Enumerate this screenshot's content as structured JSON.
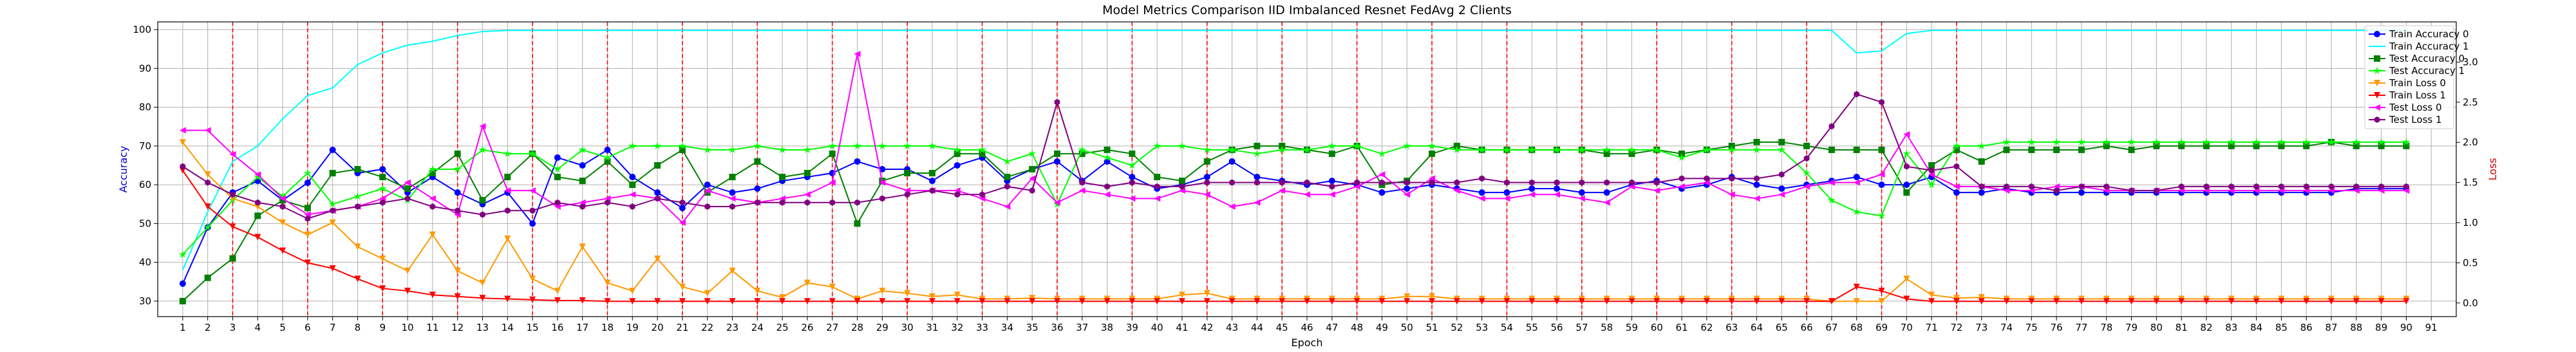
{
  "chart_data": {
    "type": "line",
    "title": "Model Metrics Comparison IID Imbalanced Resnet FedAvg 2 Clients",
    "xlabel": "Epoch",
    "ylabel_left": "Accuracy",
    "ylabel_right": "Loss",
    "x_ticks": [
      1,
      2,
      3,
      4,
      5,
      6,
      7,
      8,
      9,
      10,
      11,
      12,
      13,
      14,
      15,
      16,
      17,
      18,
      19,
      20,
      21,
      22,
      23,
      24,
      25,
      26,
      27,
      28,
      29,
      30,
      31,
      32,
      33,
      34,
      35,
      36,
      37,
      38,
      39,
      40,
      41,
      42,
      43,
      44,
      45,
      46,
      47,
      48,
      49,
      50,
      51,
      52,
      53,
      54,
      55,
      56,
      57,
      58,
      59,
      60,
      61,
      62,
      63,
      64,
      65,
      66,
      67,
      68,
      69,
      70,
      71,
      72,
      73,
      74,
      75,
      76,
      77,
      78,
      79,
      80,
      81,
      82,
      83,
      84,
      85,
      86,
      87,
      88,
      89,
      90,
      91
    ],
    "xlim": [
      0,
      92
    ],
    "ylim_left": [
      26,
      102
    ],
    "yticks_left": [
      30,
      40,
      50,
      60,
      70,
      80,
      90,
      100
    ],
    "ylim_right": [
      -0.17,
      3.5
    ],
    "yticks_right": [
      0.0,
      0.5,
      1.0,
      1.5,
      2.0,
      2.5,
      3.0
    ],
    "vlines": [
      3,
      6,
      9,
      12,
      15,
      18,
      21,
      24,
      27,
      30,
      33,
      36,
      39,
      42,
      45,
      48,
      51,
      54,
      57,
      60,
      63,
      66,
      69,
      72
    ],
    "legend_position": "upper right",
    "colors": {
      "left_axis": "#0000cc",
      "right_axis": "#cc0000",
      "vline": "#ff0000",
      "grid": "#b0b0b0"
    },
    "series": [
      {
        "name": "Train Accuracy 0",
        "axis": "left",
        "color": "#0000ff",
        "marker": "circle",
        "values": [
          34.5,
          49,
          58,
          61,
          56,
          60.5,
          69,
          63,
          64,
          58,
          62,
          58,
          55,
          58,
          50,
          67,
          65,
          69,
          62,
          58,
          54,
          60,
          58,
          59,
          61,
          62,
          63,
          66,
          64,
          64,
          61,
          65,
          67,
          61,
          64,
          66,
          61,
          66,
          62,
          59,
          60,
          62,
          66,
          62,
          61,
          60,
          61,
          60,
          58,
          59,
          60,
          59,
          58,
          58,
          59,
          59,
          58,
          58,
          60,
          61,
          59,
          60,
          62,
          60,
          59,
          60,
          61,
          62,
          60,
          60,
          62,
          58,
          58,
          59,
          58,
          58,
          58,
          58,
          58,
          58,
          58,
          58,
          58,
          58,
          58,
          58,
          58,
          59,
          59,
          59
        ]
      },
      {
        "name": "Train Accuracy 1",
        "axis": "left",
        "color": "#00ffff",
        "marker": "none",
        "values": [
          38,
          53,
          66,
          70,
          77,
          83,
          85,
          91,
          94,
          96,
          97,
          98.5,
          99.5,
          99.8,
          99.8,
          99.8,
          99.8,
          99.8,
          99.8,
          99.8,
          99.8,
          99.8,
          99.8,
          99.8,
          99.8,
          99.8,
          99.8,
          99.8,
          99.8,
          99.8,
          99.8,
          99.8,
          99.8,
          99.8,
          99.8,
          99.8,
          99.8,
          99.8,
          99.8,
          99.8,
          99.8,
          99.8,
          99.8,
          99.8,
          99.8,
          99.8,
          99.8,
          99.8,
          99.8,
          99.8,
          99.8,
          99.8,
          99.8,
          99.8,
          99.8,
          99.8,
          99.8,
          99.8,
          99.8,
          99.8,
          99.8,
          99.8,
          99.8,
          99.8,
          99.8,
          99.8,
          99.8,
          94,
          94.5,
          99,
          99.8,
          99.8,
          99.8,
          99.8,
          99.8,
          99.8,
          99.8,
          99.8,
          99.8,
          99.8,
          99.8,
          99.8,
          99.8,
          99.8,
          99.8,
          99.8,
          99.8,
          99.8,
          99.8,
          99.8
        ]
      },
      {
        "name": "Test Accuracy 0",
        "axis": "left",
        "color": "#008000",
        "marker": "square",
        "values": [
          30,
          36,
          41,
          52,
          56,
          54,
          63,
          64,
          62,
          59,
          63,
          68,
          56,
          62,
          68,
          62,
          61,
          66,
          60,
          65,
          69,
          58,
          62,
          66,
          62,
          63,
          68,
          50,
          61,
          63,
          63,
          68,
          68,
          62,
          64,
          68,
          68,
          69,
          68,
          62,
          61,
          66,
          69,
          70,
          70,
          69,
          68,
          70,
          60,
          61,
          68,
          70,
          69,
          69,
          69,
          69,
          69,
          68,
          68,
          69,
          68,
          69,
          70,
          71,
          71,
          70,
          69,
          69,
          69,
          58,
          65,
          69,
          66,
          69,
          69,
          69,
          69,
          70,
          69,
          70,
          70,
          70,
          70,
          70,
          70,
          70,
          71,
          70,
          70,
          70
        ]
      },
      {
        "name": "Test Accuracy 1",
        "axis": "left",
        "color": "#00ff00",
        "marker": "star",
        "values": [
          42,
          49,
          56,
          62,
          57,
          63,
          55,
          57,
          59,
          56,
          64,
          64,
          69,
          68,
          68,
          64,
          69,
          67,
          70,
          70,
          70,
          69,
          69,
          70,
          69,
          69,
          70,
          70,
          70,
          70,
          70,
          69,
          69,
          66,
          68,
          55,
          69,
          67,
          65,
          70,
          70,
          69,
          69,
          68,
          69,
          69,
          70,
          70,
          68,
          70,
          70,
          69,
          69,
          69,
          69,
          69,
          69,
          69,
          69,
          69,
          67,
          69,
          69,
          69,
          69,
          63,
          56,
          53,
          52,
          68,
          60,
          70,
          70,
          71,
          71,
          71,
          71,
          71,
          71,
          71,
          71,
          71,
          71,
          71,
          71,
          71,
          71,
          71,
          71,
          71
        ]
      },
      {
        "name": "Train Loss 0",
        "axis": "right",
        "color": "#ff9900",
        "marker": "triangle-down",
        "values": [
          2.0,
          1.6,
          1.3,
          1.2,
          1.0,
          0.85,
          1.0,
          0.7,
          0.55,
          0.4,
          0.85,
          0.4,
          0.25,
          0.8,
          0.3,
          0.15,
          0.7,
          0.25,
          0.15,
          0.55,
          0.2,
          0.12,
          0.4,
          0.15,
          0.07,
          0.25,
          0.2,
          0.05,
          0.15,
          0.12,
          0.08,
          0.1,
          0.05,
          0.05,
          0.06,
          0.05,
          0.05,
          0.05,
          0.05,
          0.05,
          0.1,
          0.12,
          0.05,
          0.05,
          0.05,
          0.05,
          0.05,
          0.05,
          0.05,
          0.08,
          0.08,
          0.05,
          0.05,
          0.05,
          0.05,
          0.05,
          0.05,
          0.05,
          0.05,
          0.05,
          0.05,
          0.05,
          0.05,
          0.05,
          0.05,
          0.05,
          0.02,
          0.02,
          0.02,
          0.3,
          0.1,
          0.06,
          0.07,
          0.05,
          0.05,
          0.05,
          0.05,
          0.05,
          0.05,
          0.05,
          0.05,
          0.05,
          0.05,
          0.05,
          0.05,
          0.05,
          0.05,
          0.05,
          0.05,
          0.05
        ]
      },
      {
        "name": "Train Loss 1",
        "axis": "right",
        "color": "#ff0000",
        "marker": "triangle-down",
        "values": [
          1.65,
          1.2,
          0.95,
          0.82,
          0.65,
          0.5,
          0.43,
          0.3,
          0.18,
          0.15,
          0.1,
          0.08,
          0.06,
          0.05,
          0.04,
          0.03,
          0.03,
          0.02,
          0.02,
          0.02,
          0.02,
          0.02,
          0.02,
          0.02,
          0.02,
          0.02,
          0.02,
          0.02,
          0.02,
          0.02,
          0.02,
          0.02,
          0.02,
          0.02,
          0.02,
          0.02,
          0.02,
          0.02,
          0.02,
          0.02,
          0.02,
          0.02,
          0.02,
          0.02,
          0.02,
          0.02,
          0.02,
          0.02,
          0.02,
          0.02,
          0.02,
          0.02,
          0.02,
          0.02,
          0.02,
          0.02,
          0.02,
          0.02,
          0.02,
          0.02,
          0.02,
          0.02,
          0.02,
          0.02,
          0.02,
          0.02,
          0.02,
          0.2,
          0.15,
          0.05,
          0.02,
          0.02,
          0.02,
          0.02,
          0.02,
          0.02,
          0.02,
          0.02,
          0.02,
          0.02,
          0.02,
          0.02,
          0.02,
          0.02,
          0.02,
          0.02,
          0.02,
          0.02,
          0.02,
          0.02
        ]
      },
      {
        "name": "Test Loss 0",
        "axis": "right",
        "color": "#ff00ff",
        "marker": "triangle-left",
        "values": [
          2.15,
          2.15,
          1.85,
          1.6,
          1.3,
          1.1,
          1.15,
          1.2,
          1.3,
          1.5,
          1.3,
          1.1,
          2.2,
          1.4,
          1.4,
          1.2,
          1.25,
          1.3,
          1.35,
          1.3,
          1.0,
          1.4,
          1.3,
          1.25,
          1.3,
          1.35,
          1.5,
          3.1,
          1.5,
          1.4,
          1.4,
          1.4,
          1.3,
          1.2,
          1.55,
          1.25,
          1.4,
          1.35,
          1.3,
          1.3,
          1.4,
          1.35,
          1.2,
          1.25,
          1.4,
          1.35,
          1.35,
          1.45,
          1.6,
          1.35,
          1.55,
          1.4,
          1.3,
          1.3,
          1.35,
          1.35,
          1.3,
          1.25,
          1.45,
          1.4,
          1.45,
          1.5,
          1.35,
          1.3,
          1.35,
          1.45,
          1.5,
          1.5,
          1.6,
          2.1,
          1.6,
          1.45,
          1.45,
          1.4,
          1.4,
          1.45,
          1.45,
          1.4,
          1.4,
          1.4,
          1.4,
          1.4,
          1.4,
          1.4,
          1.4,
          1.4,
          1.4,
          1.4,
          1.4,
          1.4
        ]
      },
      {
        "name": "Test Loss 1",
        "axis": "right",
        "color": "#800080",
        "marker": "hexagon",
        "values": [
          1.7,
          1.5,
          1.35,
          1.25,
          1.2,
          1.05,
          1.15,
          1.2,
          1.25,
          1.3,
          1.2,
          1.15,
          1.1,
          1.15,
          1.15,
          1.25,
          1.2,
          1.25,
          1.2,
          1.3,
          1.25,
          1.2,
          1.2,
          1.25,
          1.25,
          1.25,
          1.25,
          1.25,
          1.3,
          1.35,
          1.4,
          1.35,
          1.35,
          1.45,
          1.4,
          2.5,
          1.5,
          1.45,
          1.5,
          1.45,
          1.45,
          1.5,
          1.5,
          1.5,
          1.5,
          1.5,
          1.45,
          1.5,
          1.5,
          1.5,
          1.5,
          1.5,
          1.55,
          1.5,
          1.5,
          1.5,
          1.5,
          1.5,
          1.5,
          1.5,
          1.55,
          1.55,
          1.55,
          1.55,
          1.6,
          1.8,
          2.2,
          2.6,
          2.5,
          1.7,
          1.65,
          1.7,
          1.45,
          1.45,
          1.45,
          1.4,
          1.45,
          1.45,
          1.4,
          1.4,
          1.45,
          1.45,
          1.45,
          1.45,
          1.45,
          1.45,
          1.45,
          1.45,
          1.45,
          1.45
        ]
      }
    ]
  }
}
